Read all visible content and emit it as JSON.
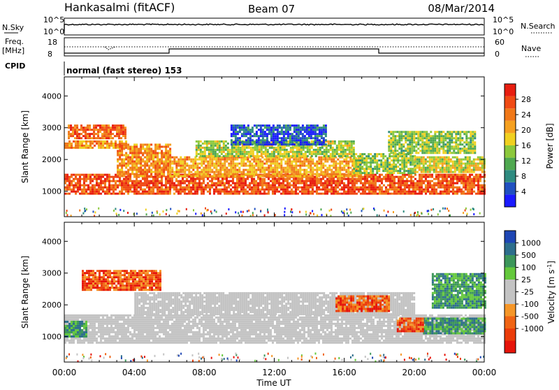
{
  "header": {
    "site": "Hankasalmi (fitACF)",
    "beam": "Beam 07",
    "date": "08/Mar/2014"
  },
  "noise_panel": {
    "left_label": "N.Sky",
    "right_label": "N.Search",
    "left_ticks": [
      "10^5",
      "10^0"
    ],
    "right_ticks": [
      "10^5",
      "10^0"
    ]
  },
  "freq_panel": {
    "left_label_1": "Freq.",
    "left_label_2": "[MHz]",
    "left_ticks": [
      "18",
      "8"
    ],
    "right_ticks": [
      "60",
      "0"
    ],
    "right_label": "Nave"
  },
  "cpid": {
    "label": "CPID",
    "text": "normal (fast stereo) 153"
  },
  "x_axis": {
    "label": "Time UT",
    "ticks": [
      "00:00",
      "04:00",
      "08:00",
      "12:00",
      "16:00",
      "20:00",
      "00:00"
    ]
  },
  "colors": {
    "ground_scatter": "#c3c3c3",
    "axis": "#000000"
  },
  "chart_data": [
    {
      "type": "heatmap",
      "name": "power",
      "ylabel": "Slant Range [km]",
      "yticks": [
        "1000",
        "2000",
        "3000",
        "4000"
      ],
      "ylim": [
        200,
        4600
      ],
      "x_range_hours": [
        0,
        24
      ],
      "colorbar": {
        "label": "Power [dB]",
        "labels": [
          "4",
          "8",
          "12",
          "16",
          "20",
          "24",
          "28"
        ],
        "range": [
          0,
          32
        ],
        "colors": [
          "#1a1aff",
          "#2050c0",
          "#2e8b80",
          "#4fa850",
          "#8cc83c",
          "#f0d020",
          "#f5a020",
          "#f07818",
          "#f04a14",
          "#e81e10"
        ]
      },
      "regions": [
        {
          "t": [
            0.0,
            24.0
          ],
          "r": [
            900,
            1550
          ],
          "level": 27
        },
        {
          "t": [
            0.0,
            3.5
          ],
          "r": [
            2400,
            2600
          ],
          "level": 22
        },
        {
          "t": [
            0.2,
            3.5
          ],
          "r": [
            2700,
            3100
          ],
          "level": 26
        },
        {
          "t": [
            3.0,
            6.0
          ],
          "r": [
            1500,
            2500
          ],
          "level": 23
        },
        {
          "t": [
            6.0,
            17.0
          ],
          "r": [
            1500,
            2100
          ],
          "level": 21
        },
        {
          "t": [
            7.5,
            16.5
          ],
          "r": [
            2100,
            2600
          ],
          "level": 15
        },
        {
          "t": [
            9.5,
            15.0
          ],
          "r": [
            2500,
            3100
          ],
          "level": 5
        },
        {
          "t": [
            16.5,
            20.0
          ],
          "r": [
            1600,
            2200
          ],
          "level": 14
        },
        {
          "t": [
            18.5,
            23.5
          ],
          "r": [
            2200,
            2900
          ],
          "level": 14
        },
        {
          "t": [
            20.0,
            24.0
          ],
          "r": [
            1600,
            2100
          ],
          "level": 17
        }
      ]
    },
    {
      "type": "heatmap",
      "name": "velocity",
      "ylabel": "Slant Range [km]",
      "yticks": [
        "1000",
        "2000",
        "3000",
        "4000"
      ],
      "ylim": [
        200,
        4600
      ],
      "x_range_hours": [
        0,
        24
      ],
      "colorbar": {
        "label": "Velocity [m s^-1]",
        "labels": [
          "1000",
          "500",
          "100",
          "25",
          "-25",
          "-100",
          "-500",
          "-1000"
        ],
        "colors": [
          "#1e46b4",
          "#2d6e8c",
          "#3c965a",
          "#64c83c",
          "#c3c3c3",
          "#c3c3c3",
          "#f59628",
          "#f06414",
          "#eb3c0a",
          "#e6140a"
        ]
      },
      "regions": [
        {
          "t": [
            0.0,
            24.0
          ],
          "r": [
            800,
            1700
          ],
          "kind": "ground"
        },
        {
          "t": [
            4.0,
            20.0
          ],
          "r": [
            1700,
            2400
          ],
          "kind": "ground"
        },
        {
          "t": [
            0.0,
            1.2
          ],
          "r": [
            1000,
            1500
          ],
          "kind": "positive"
        },
        {
          "t": [
            20.5,
            24.0
          ],
          "r": [
            1100,
            1600
          ],
          "kind": "positive"
        },
        {
          "t": [
            1.0,
            5.5
          ],
          "r": [
            2500,
            3100
          ],
          "kind": "negative"
        },
        {
          "t": [
            15.5,
            18.5
          ],
          "r": [
            1800,
            2300
          ],
          "kind": "negative"
        },
        {
          "t": [
            19.0,
            20.5
          ],
          "r": [
            1200,
            1600
          ],
          "kind": "negative"
        },
        {
          "t": [
            21.0,
            24.0
          ],
          "r": [
            1900,
            3000
          ],
          "kind": "positive"
        }
      ]
    }
  ]
}
